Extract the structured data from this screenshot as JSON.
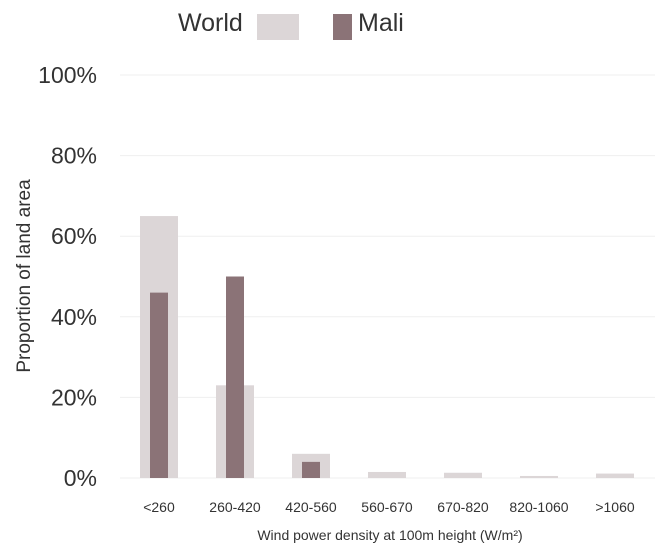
{
  "chart_data": {
    "type": "bar",
    "title": "",
    "xlabel": "Wind power density at 100m height (W/m²)",
    "ylabel": "Proportion of land area",
    "categories": [
      "<260",
      "260-420",
      "420-560",
      "560-670",
      "670-820",
      "820-1060",
      ">1060"
    ],
    "y_ticks": [
      "0%",
      "20%",
      "40%",
      "60%",
      "80%",
      "100%"
    ],
    "ylim": [
      0,
      100
    ],
    "grid": true,
    "legend_position": "top-center",
    "series": [
      {
        "name": "World",
        "color": "#dcd6d7",
        "values": [
          65,
          23,
          6,
          1.5,
          1.3,
          0.5,
          1.1
        ]
      },
      {
        "name": "Mali",
        "color": "#8b7377",
        "values": [
          46,
          50,
          4,
          0,
          0,
          0,
          0
        ]
      }
    ]
  }
}
